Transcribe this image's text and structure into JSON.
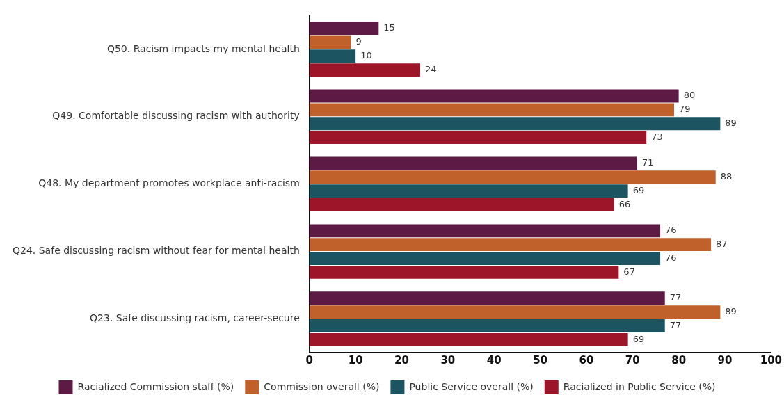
{
  "chart_data": {
    "type": "bar",
    "orientation": "horizontal",
    "categories": [
      "Q50. Racism impacts my mental health",
      "Q49. Comfortable discussing racism with authority",
      "Q48. My department promotes workplace anti-racism",
      "Q24. Safe discussing racism without fear for mental health",
      "Q23. Safe discussing racism, career-secure"
    ],
    "series": [
      {
        "name": "Racialized Commission staff (%)",
        "color": "#5c1a45",
        "values": [
          15,
          80,
          71,
          76,
          77
        ]
      },
      {
        "name": "Commission overall (%)",
        "color": "#c0602a",
        "values": [
          9,
          79,
          88,
          87,
          89
        ]
      },
      {
        "name": "Public Service overall (%)",
        "color": "#1c5462",
        "values": [
          10,
          89,
          69,
          76,
          77
        ]
      },
      {
        "name": "Racialized in Public Service (%)",
        "color": "#9c1529",
        "values": [
          24,
          73,
          66,
          67,
          69
        ]
      }
    ],
    "xlim": [
      0,
      100
    ],
    "xticks": [
      0,
      10,
      20,
      30,
      40,
      50,
      60,
      70,
      80,
      90,
      100
    ],
    "data_labels": true,
    "legend": "bottom",
    "grid": false
  }
}
